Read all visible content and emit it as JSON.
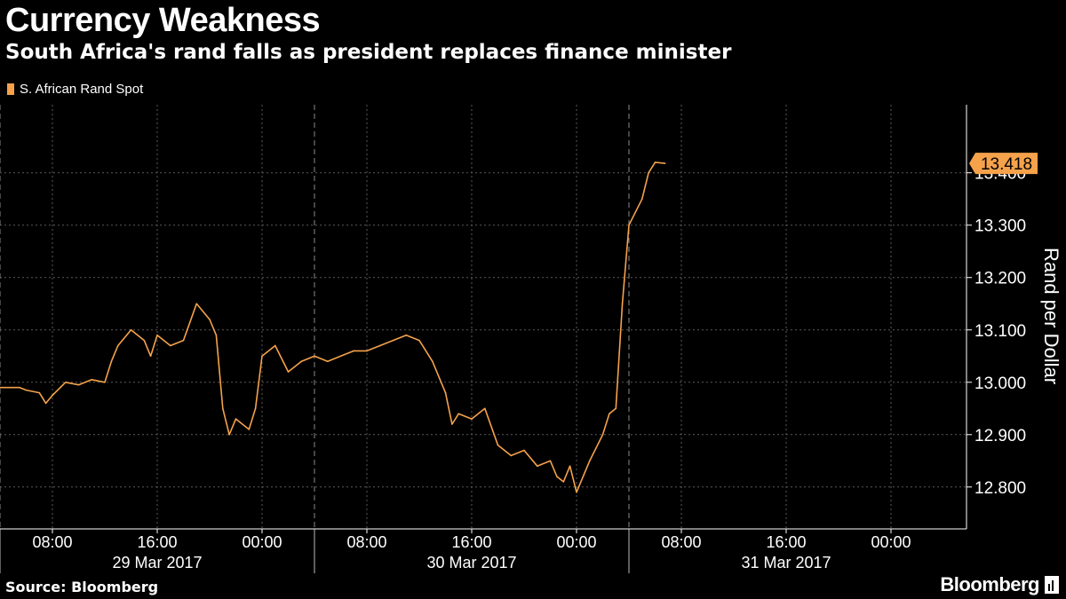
{
  "header": {
    "title": "Currency Weakness",
    "subtitle": "South Africa's rand falls as president replaces finance minister"
  },
  "legend": {
    "series_label": "S. African Rand Spot",
    "color": "#f5a24b"
  },
  "footer": {
    "source": "Source: Bloomberg",
    "brand": "Bloomberg"
  },
  "colors": {
    "background": "#000000",
    "line": "#f5a24b",
    "grid": "#5a5a5a",
    "text": "#ffffff"
  },
  "chart_data": {
    "type": "line",
    "title": "Currency Weakness",
    "subtitle": "South Africa's rand falls as president replaces finance minister",
    "ylabel": "Rand per Dollar",
    "ylim": [
      12.72,
      13.53
    ],
    "y_ticks": [
      "12.800",
      "12.900",
      "13.000",
      "13.100",
      "13.200",
      "13.300",
      "13.400"
    ],
    "y_tick_values": [
      12.8,
      12.9,
      13.0,
      13.1,
      13.2,
      13.3,
      13.4
    ],
    "x_start": "2017-03-29 04:00",
    "x_end": "2017-03-31 06:45",
    "x_tick_labels": [
      "08:00",
      "16:00",
      "00:00",
      "08:00",
      "16:00",
      "00:00",
      "08:00",
      "16:00",
      "00:00"
    ],
    "x_ticks": [
      "2017-03-29 08:00",
      "2017-03-29 16:00",
      "2017-03-30 00:00",
      "2017-03-30 08:00",
      "2017-03-30 16:00",
      "2017-03-31 00:00",
      "2017-03-31 08:00",
      "2017-03-31 16:00",
      "2017-04-01 00:00"
    ],
    "day_labels": [
      "29 Mar 2017",
      "30 Mar 2017",
      "31 Mar 2017"
    ],
    "day_dividers": [
      "2017-03-29 04:00",
      "2017-03-30 04:00",
      "2017-03-31 04:00"
    ],
    "last_value_label": "13.418",
    "grid": true,
    "legend_position": "top-left",
    "series": [
      {
        "name": "S. African Rand Spot",
        "x": [
          "2017-03-29 04:00",
          "2017-03-29 05:30",
          "2017-03-29 06:00",
          "2017-03-29 07:00",
          "2017-03-29 07:30",
          "2017-03-29 08:00",
          "2017-03-29 09:00",
          "2017-03-29 10:00",
          "2017-03-29 11:00",
          "2017-03-29 12:00",
          "2017-03-29 12:30",
          "2017-03-29 13:00",
          "2017-03-29 14:00",
          "2017-03-29 15:00",
          "2017-03-29 15:30",
          "2017-03-29 16:00",
          "2017-03-29 17:00",
          "2017-03-29 18:00",
          "2017-03-29 19:00",
          "2017-03-29 20:00",
          "2017-03-29 20:30",
          "2017-03-29 21:00",
          "2017-03-29 21:30",
          "2017-03-29 22:00",
          "2017-03-29 23:00",
          "2017-03-29 23:30",
          "2017-03-30 00:00",
          "2017-03-30 01:00",
          "2017-03-30 02:00",
          "2017-03-30 03:00",
          "2017-03-30 04:00",
          "2017-03-30 05:00",
          "2017-03-30 06:00",
          "2017-03-30 07:00",
          "2017-03-30 08:00",
          "2017-03-30 09:00",
          "2017-03-30 10:00",
          "2017-03-30 11:00",
          "2017-03-30 12:00",
          "2017-03-30 13:00",
          "2017-03-30 14:00",
          "2017-03-30 14:30",
          "2017-03-30 15:00",
          "2017-03-30 16:00",
          "2017-03-30 17:00",
          "2017-03-30 18:00",
          "2017-03-30 19:00",
          "2017-03-30 20:00",
          "2017-03-30 21:00",
          "2017-03-30 22:00",
          "2017-03-30 22:30",
          "2017-03-30 23:00",
          "2017-03-30 23:30",
          "2017-03-31 00:00",
          "2017-03-31 01:00",
          "2017-03-31 02:00",
          "2017-03-31 02:30",
          "2017-03-31 03:00",
          "2017-03-31 03:30",
          "2017-03-31 04:00",
          "2017-03-31 05:00",
          "2017-03-31 05:30",
          "2017-03-31 06:00",
          "2017-03-31 06:45"
        ],
        "y": [
          12.99,
          12.99,
          12.985,
          12.98,
          12.96,
          12.975,
          13.0,
          12.995,
          13.005,
          13.0,
          13.04,
          13.07,
          13.1,
          13.08,
          13.05,
          13.09,
          13.07,
          13.08,
          13.15,
          13.12,
          13.09,
          12.95,
          12.9,
          12.93,
          12.91,
          12.95,
          13.05,
          13.07,
          13.02,
          13.04,
          13.05,
          13.04,
          13.05,
          13.06,
          13.06,
          13.07,
          13.08,
          13.09,
          13.08,
          13.04,
          12.98,
          12.92,
          12.94,
          12.93,
          12.95,
          12.88,
          12.86,
          12.87,
          12.84,
          12.85,
          12.82,
          12.81,
          12.84,
          12.79,
          12.85,
          12.9,
          12.94,
          12.95,
          13.15,
          13.3,
          13.35,
          13.4,
          13.42,
          13.418
        ]
      }
    ]
  }
}
